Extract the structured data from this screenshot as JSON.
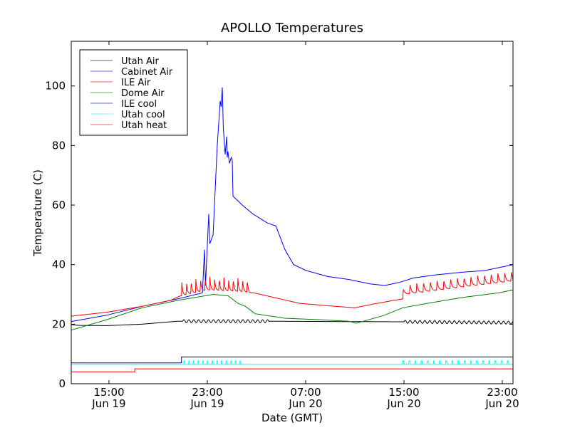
{
  "chart_data": {
    "type": "line",
    "title": "APOLLO Temperatures",
    "xlabel": "Date (GMT)",
    "ylabel": "Temperature (C)",
    "x_units": "hours since Jun 19 00:00 GMT",
    "xlim": [
      11.93,
      47.87
    ],
    "ylim": [
      0,
      115
    ],
    "grid": false,
    "legend_position": "top-left",
    "x_ticks": [
      {
        "value": 15,
        "time": "15:00",
        "date": "Jun 19"
      },
      {
        "value": 23,
        "time": "23:00",
        "date": "Jun 19"
      },
      {
        "value": 31,
        "time": "07:00",
        "date": "Jun 20"
      },
      {
        "value": 39,
        "time": "15:00",
        "date": "Jun 20"
      },
      {
        "value": 47,
        "time": "23:00",
        "date": "Jun 20"
      }
    ],
    "y_ticks": [
      0,
      20,
      40,
      60,
      80,
      100
    ],
    "series": [
      {
        "name": "Utah Air",
        "color": "#000000",
        "points": [
          [
            11.93,
            19.9
          ],
          [
            12.5,
            19.6
          ],
          [
            14.8,
            19.5
          ],
          [
            17.7,
            20.0
          ],
          [
            20.6,
            21.0
          ],
          [
            26.7,
            21.0
          ],
          [
            32.8,
            20.9
          ],
          [
            38.6,
            20.8
          ],
          [
            47.87,
            20.5
          ]
        ],
        "ripple": [
          {
            "start": 21.0,
            "end": 28.0,
            "period": 0.4,
            "amp": 0.5
          },
          {
            "start": 39.0,
            "end": 47.87,
            "period": 0.4,
            "amp": 0.5
          }
        ]
      },
      {
        "name": "Cabinet Air",
        "color": "#0000ff",
        "points": [
          [
            11.93,
            20.9
          ],
          [
            14.8,
            23.0
          ],
          [
            17.7,
            26.0
          ],
          [
            20.6,
            28.5
          ],
          [
            22.6,
            30.5
          ],
          [
            22.77,
            45
          ],
          [
            22.85,
            33
          ],
          [
            23.12,
            57
          ],
          [
            23.2,
            47
          ],
          [
            23.47,
            50
          ],
          [
            23.81,
            80
          ],
          [
            24.05,
            95
          ],
          [
            24.12,
            93
          ],
          [
            24.22,
            99.5
          ],
          [
            24.3,
            86
          ],
          [
            24.45,
            77
          ],
          [
            24.57,
            83
          ],
          [
            24.62,
            76
          ],
          [
            24.68,
            78
          ],
          [
            24.8,
            74
          ],
          [
            24.95,
            76
          ],
          [
            25.03,
            75
          ],
          [
            25.09,
            63
          ],
          [
            25.84,
            60
          ],
          [
            26.71,
            57
          ],
          [
            27.87,
            54
          ],
          [
            28.57,
            53
          ],
          [
            29.32,
            45
          ],
          [
            30.02,
            40
          ],
          [
            31.06,
            38
          ],
          [
            32.8,
            36
          ],
          [
            34.54,
            35
          ],
          [
            36.28,
            33.5
          ],
          [
            37.44,
            33
          ],
          [
            38.6,
            34
          ],
          [
            39.76,
            35.5
          ],
          [
            41.5,
            36.5
          ],
          [
            43.81,
            37.5
          ],
          [
            45.55,
            38
          ],
          [
            47.87,
            40
          ]
        ]
      },
      {
        "name": "ILE Air",
        "color": "#ff0000",
        "points": [
          [
            11.93,
            22.7
          ],
          [
            14.8,
            24.0
          ],
          [
            17.7,
            26.0
          ],
          [
            20.0,
            28.0
          ],
          [
            20.8,
            29.5
          ],
          [
            23.0,
            31.5
          ],
          [
            25.5,
            31.0
          ],
          [
            26.8,
            30.5
          ],
          [
            30.5,
            27.0
          ],
          [
            33.4,
            26.0
          ],
          [
            35.0,
            25.5
          ],
          [
            36.8,
            27.0
          ],
          [
            38.9,
            28.5
          ],
          [
            39.1,
            30.0
          ],
          [
            43.8,
            32.5
          ],
          [
            47.87,
            34.5
          ]
        ],
        "spikes": [
          {
            "start": 20.9,
            "end": 26.4,
            "period": 0.38,
            "amp": 4.5
          },
          {
            "start": 38.9,
            "end": 47.87,
            "period": 0.55,
            "amp": 3.5
          }
        ]
      },
      {
        "name": "Dome Air",
        "color": "#008000",
        "points": [
          [
            11.93,
            18.0
          ],
          [
            14.8,
            21.5
          ],
          [
            17.7,
            25.5
          ],
          [
            20.6,
            28.0
          ],
          [
            23.5,
            30.0
          ],
          [
            24.7,
            29.5
          ],
          [
            25.5,
            27.0
          ],
          [
            26.1,
            26.0
          ],
          [
            26.9,
            23.5
          ],
          [
            29.3,
            22.0
          ],
          [
            32.2,
            21.5
          ],
          [
            34.5,
            21.0
          ],
          [
            35.1,
            20.3
          ],
          [
            35.7,
            21.0
          ],
          [
            37.4,
            23.0
          ],
          [
            38.9,
            25.5
          ],
          [
            40.9,
            27.0
          ],
          [
            43.8,
            29.0
          ],
          [
            46.7,
            30.5
          ],
          [
            47.87,
            31.5
          ]
        ]
      },
      {
        "name": "ILE cool",
        "color": "#000080",
        "points": [
          [
            11.93,
            7
          ],
          [
            20.9,
            7
          ],
          [
            20.9,
            9
          ],
          [
            47.87,
            9
          ]
        ]
      },
      {
        "name": "Utah cool",
        "color": "#00ffff",
        "points": [
          [
            11.93,
            6.5
          ],
          [
            47.87,
            6.5
          ]
        ],
        "pulses": [
          {
            "start": 21.1,
            "end": 25.9,
            "period": 0.38,
            "amp": 1.2
          },
          {
            "start": 38.9,
            "end": 47.87,
            "period": 0.5,
            "amp": 1.2
          }
        ]
      },
      {
        "name": "Utah heat",
        "color": "#ff0000",
        "points": [
          [
            11.93,
            4
          ],
          [
            17.1,
            4
          ],
          [
            17.1,
            5
          ],
          [
            47.87,
            5
          ]
        ]
      }
    ]
  }
}
